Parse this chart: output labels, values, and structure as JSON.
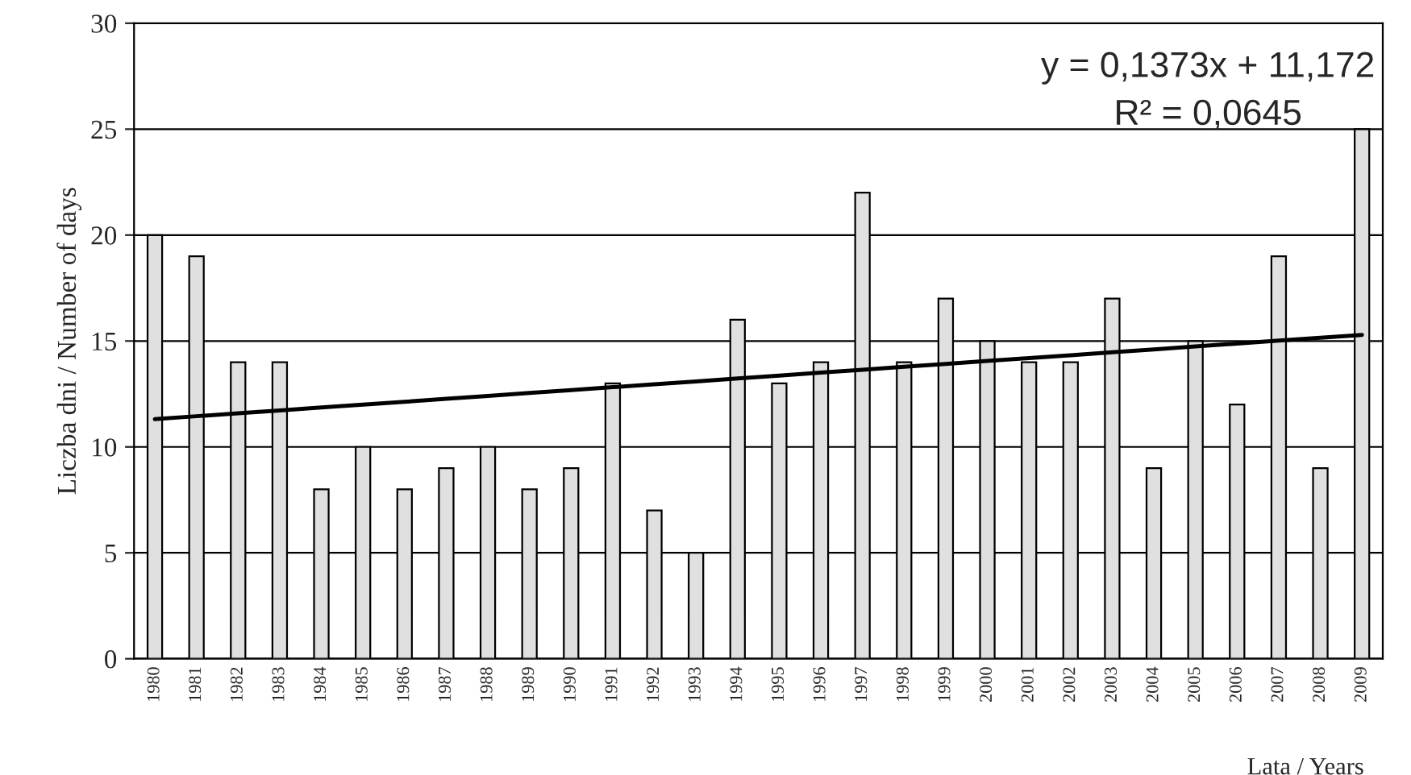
{
  "chart_data": {
    "type": "bar",
    "xlabel": "Lata / Years",
    "ylabel": "Liczba dni / Number of days",
    "categories": [
      "1980",
      "1981",
      "1982",
      "1983",
      "1984",
      "1985",
      "1986",
      "1987",
      "1988",
      "1989",
      "1990",
      "1991",
      "1992",
      "1993",
      "1994",
      "1995",
      "1996",
      "1997",
      "1998",
      "1999",
      "2000",
      "2001",
      "2002",
      "2003",
      "2004",
      "2005",
      "2006",
      "2007",
      "2008",
      "2009"
    ],
    "series": [
      {
        "color": "#e0e0e0",
        "values": [
          20,
          19,
          14,
          14,
          8,
          10,
          8,
          9,
          10,
          8,
          9,
          13,
          7,
          5,
          16,
          13,
          14,
          22,
          14,
          17,
          15,
          14,
          14,
          17,
          9,
          15,
          12,
          19,
          9,
          25
        ]
      },
      {
        "type": "line",
        "color": "#000000",
        "values": [
          11.31,
          11.45,
          11.59,
          11.72,
          11.86,
          12.0,
          12.13,
          12.27,
          12.41,
          12.55,
          12.68,
          12.82,
          12.96,
          13.09,
          13.23,
          13.37,
          13.51,
          13.64,
          13.78,
          13.92,
          14.06,
          14.19,
          14.33,
          14.47,
          14.6,
          14.74,
          14.88,
          15.02,
          15.15,
          15.29
        ]
      }
    ],
    "ylim": [
      0,
      30
    ],
    "yticks": [
      0,
      5,
      10,
      15,
      20,
      25,
      30
    ],
    "grid": "y",
    "legend": false,
    "annotations": [
      "y = 0,1373x + 11,172",
      "R² = 0,0645"
    ]
  }
}
